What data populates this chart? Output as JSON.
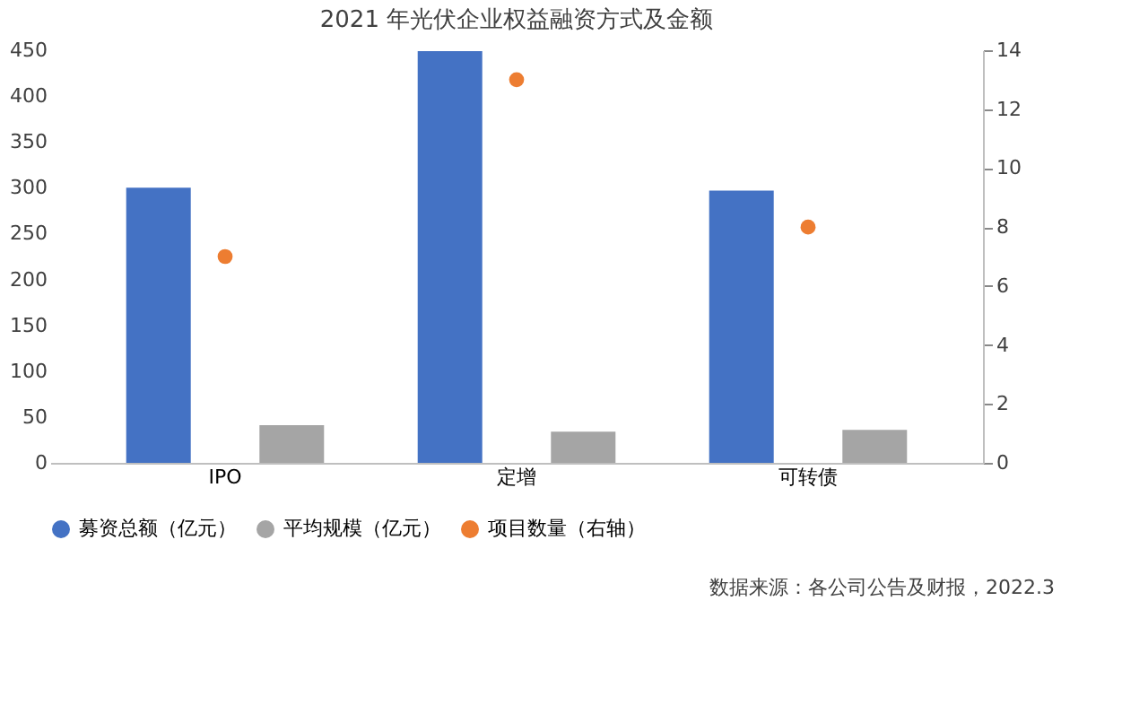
{
  "chart_data": {
    "type": "bar",
    "title": "2021 年光伏企业权益融资方式及金额",
    "categories": [
      "IPO",
      "定增",
      "可转债"
    ],
    "series": [
      {
        "name": "募资总额（亿元）",
        "color": "#4472c4",
        "values": [
          300,
          449,
          297
        ]
      },
      {
        "name": "平均规模（亿元）",
        "color": "#a5a5a5",
        "values": [
          41,
          34,
          36
        ]
      },
      {
        "name": "项目数量（右轴）",
        "color": "#ed7d31",
        "type": "scatter",
        "axis": "y2",
        "values": [
          7,
          13,
          8
        ]
      }
    ],
    "ylim": [
      0,
      450
    ],
    "yticks": [
      0,
      50,
      100,
      150,
      200,
      250,
      300,
      350,
      400,
      450
    ],
    "y2lim": [
      0,
      14
    ],
    "y2ticks": [
      0,
      2,
      4,
      6,
      8,
      10,
      12,
      14
    ],
    "legend": "bottom",
    "marker": "circle",
    "grid": false,
    "annotations": [
      "数据来源：各公司公告及财报，2022.3"
    ]
  }
}
